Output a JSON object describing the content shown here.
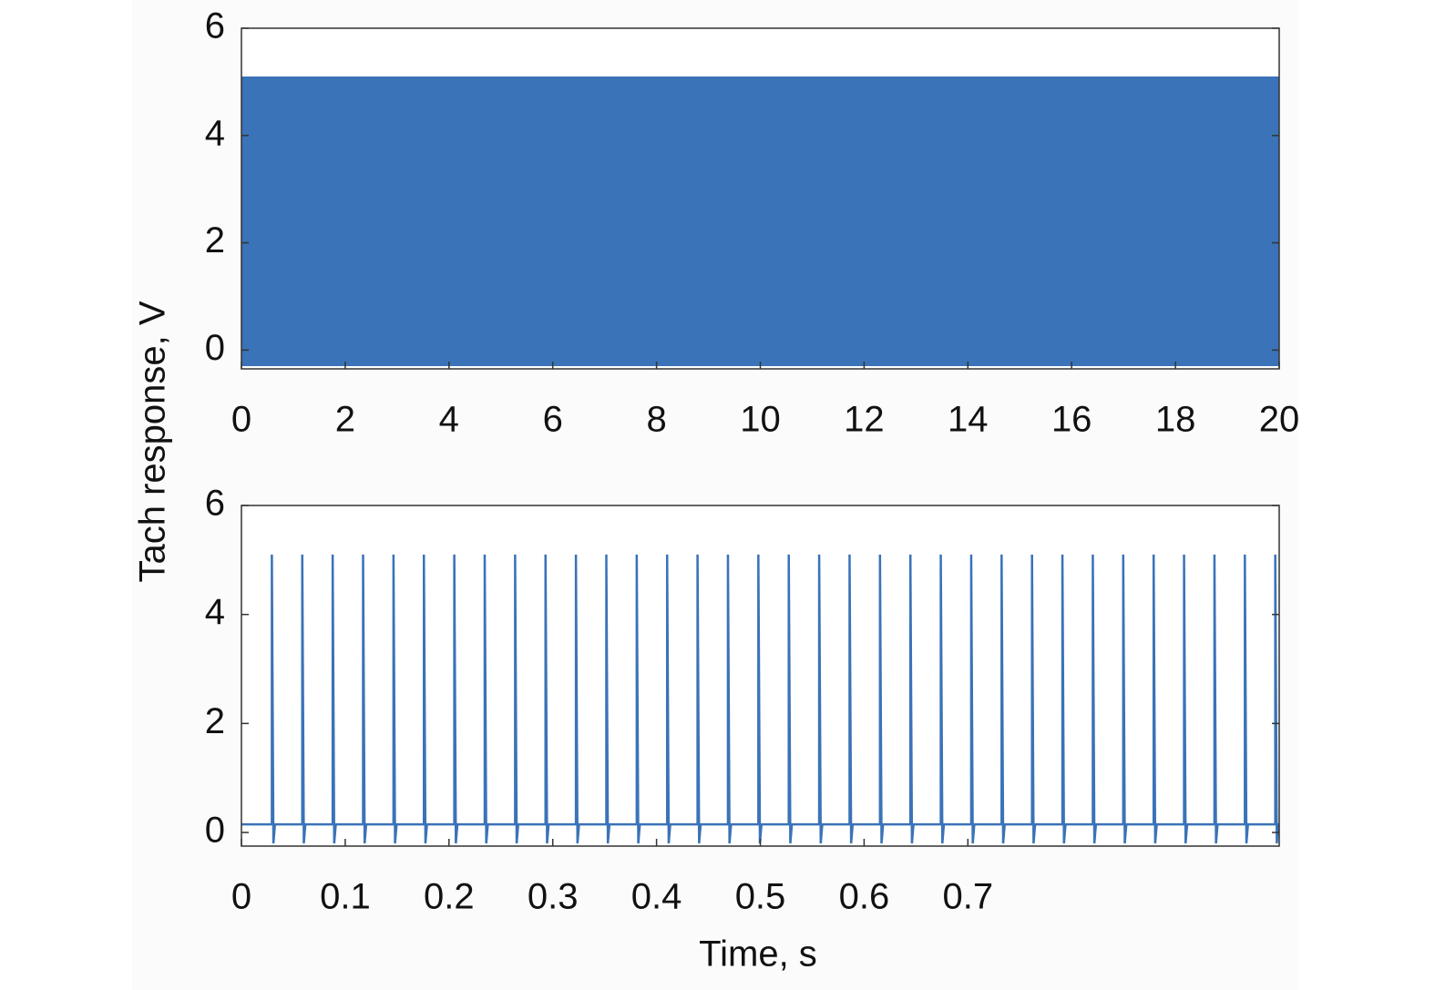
{
  "chart_data": [
    {
      "type": "band",
      "ylabel": "Tach response, V",
      "color": "#3a73b8",
      "x": [
        0,
        20
      ],
      "values": [
        5.1,
        5.1
      ],
      "low": [
        -0.3,
        -0.3
      ],
      "xlim": [
        0,
        20
      ],
      "ylim": [
        -0.35,
        6
      ],
      "xticks": [
        0,
        2,
        4,
        6,
        8,
        10,
        12,
        14,
        16,
        18,
        20
      ],
      "yticks": [
        0,
        2,
        4,
        6
      ]
    },
    {
      "type": "line",
      "xlabel": "Time, s",
      "color": "#3a73b8",
      "x": [
        0,
        0.0293,
        0.0293,
        0.0308,
        0.0323,
        0.0586,
        0.0586,
        0.0601,
        0.0616,
        0.0879,
        0.0879,
        0.0894,
        0.0909,
        0.1172,
        0.1172,
        0.1187,
        0.1202,
        0.1465,
        0.1465,
        0.148,
        0.1495,
        0.1758,
        0.1758,
        0.1773,
        0.1788,
        0.2051,
        0.2051,
        0.2066,
        0.2081,
        0.2344,
        0.2344,
        0.2359,
        0.2374,
        0.2637,
        0.2637,
        0.2652,
        0.2667,
        0.293,
        0.293,
        0.2945,
        0.296,
        0.3223,
        0.3223,
        0.3238,
        0.3253,
        0.3516,
        0.3516,
        0.3531,
        0.3546,
        0.3809,
        0.3809,
        0.3824,
        0.3839,
        0.4102,
        0.4102,
        0.4117,
        0.4132,
        0.4395,
        0.4395,
        0.441,
        0.4425,
        0.4688,
        0.4688,
        0.4703,
        0.4718,
        0.4981,
        0.4981,
        0.4996,
        0.5011,
        0.5274,
        0.5274,
        0.5289,
        0.5304,
        0.5567,
        0.5567,
        0.5582,
        0.5597,
        0.586,
        0.586,
        0.5875,
        0.589,
        0.6153,
        0.6153,
        0.6168,
        0.6183,
        0.6446,
        0.6446,
        0.6461,
        0.6476,
        0.6739,
        0.6739,
        0.6754,
        0.6769,
        0.7032,
        0.7032,
        0.7047,
        0.7062,
        0.7325,
        0.7325,
        0.734,
        0.7355,
        0.7618,
        0.7618,
        0.7633,
        0.7648,
        0.7911,
        0.7911,
        0.7926,
        0.7941,
        0.8204,
        0.8204,
        0.8219,
        0.8234,
        0.8497,
        0.8497,
        0.8512,
        0.8527,
        0.879,
        0.879,
        0.8805,
        0.882,
        0.9083,
        0.9083,
        0.9098,
        0.9113,
        0.9376,
        0.9376,
        0.9391,
        0.9406,
        0.9669,
        0.9669,
        0.9684,
        0.9699,
        0.9962,
        0.9962,
        0.9977,
        0.9992,
        1
      ],
      "values": [
        0.15,
        0.15,
        5.1,
        -0.2,
        0.15,
        0.15,
        5.1,
        -0.2,
        0.15,
        0.15,
        5.1,
        -0.2,
        0.15,
        0.15,
        5.1,
        -0.2,
        0.15,
        0.15,
        5.1,
        -0.2,
        0.15,
        0.15,
        5.1,
        -0.2,
        0.15,
        0.15,
        5.1,
        -0.2,
        0.15,
        0.15,
        5.1,
        -0.2,
        0.15,
        0.15,
        5.1,
        -0.2,
        0.15,
        0.15,
        5.1,
        -0.2,
        0.15,
        0.15,
        5.1,
        -0.2,
        0.15,
        0.15,
        5.1,
        -0.2,
        0.15,
        0.15,
        5.1,
        -0.2,
        0.15,
        0.15,
        5.1,
        -0.2,
        0.15,
        0.15,
        5.1,
        -0.2,
        0.15,
        0.15,
        5.1,
        -0.2,
        0.15,
        0.15,
        5.1,
        -0.2,
        0.15,
        0.15,
        5.1,
        -0.2,
        0.15,
        0.15,
        5.1,
        -0.2,
        0.15,
        0.15,
        5.1,
        -0.2,
        0.15,
        0.15,
        5.1,
        -0.2,
        0.15,
        0.15,
        5.1,
        -0.2,
        0.15,
        0.15,
        5.1,
        -0.2,
        0.15,
        0.15,
        5.1,
        -0.2,
        0.15,
        0.15,
        5.1,
        -0.2,
        0.15,
        0.15,
        5.1,
        -0.2,
        0.15,
        0.15,
        5.1,
        -0.2,
        0.15,
        0.15,
        5.1,
        -0.2,
        0.15,
        0.15,
        5.1,
        -0.2,
        0.15,
        0.15,
        5.1,
        -0.2,
        0.15,
        0.15,
        5.1,
        -0.2,
        0.15,
        0.15,
        5.1,
        -0.2,
        0.15,
        0.15,
        5.1,
        -0.2,
        0.15,
        0.15,
        5.1,
        -0.2,
        0.15,
        0.15
      ],
      "xlim": [
        0,
        1
      ],
      "ylim": [
        -0.25,
        6
      ],
      "xticks": [
        0,
        0.1,
        0.2,
        0.3,
        0.4,
        0.5,
        0.6,
        0.7
      ],
      "yticks": [
        0,
        2,
        4,
        6
      ]
    }
  ]
}
